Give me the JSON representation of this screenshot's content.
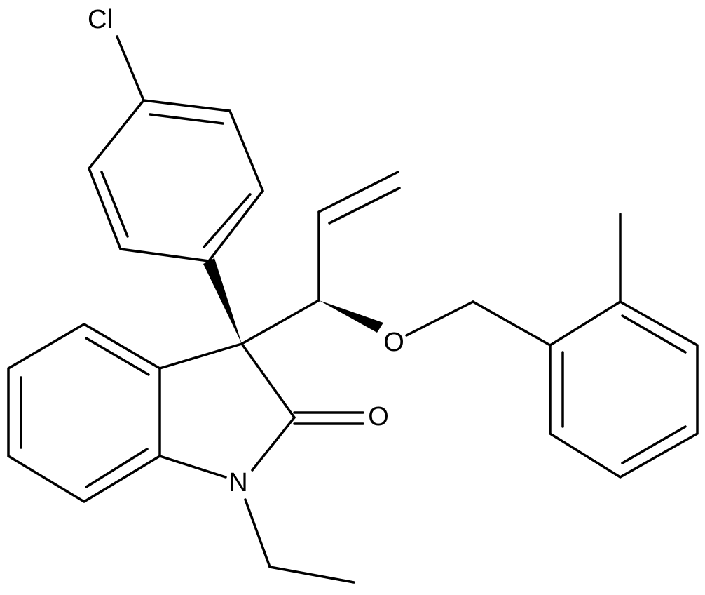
{
  "atoms": [
    {
      "label": "Cl"
    },
    {
      "label": "O"
    },
    {
      "label": "O"
    },
    {
      "label": "N"
    }
  ]
}
